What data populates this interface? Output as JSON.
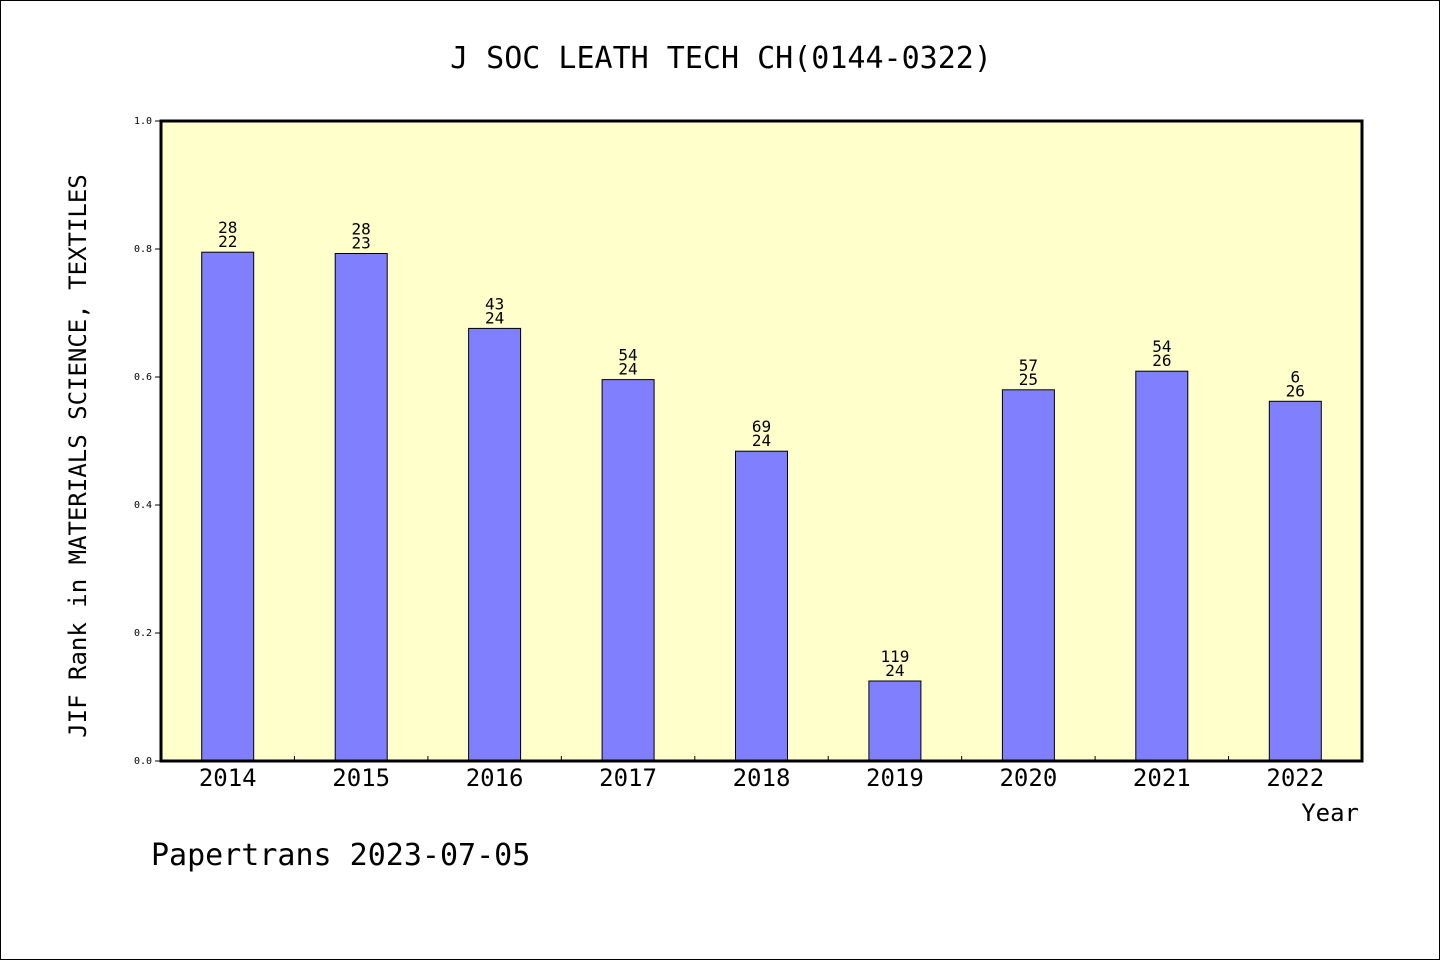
{
  "chart_data": {
    "type": "bar",
    "title": "J SOC LEATH TECH CH(0144-0322)",
    "xlabel": "Year",
    "ylabel": "JIF Rank in MATERIALS SCIENCE, TEXTILES",
    "categories": [
      "2014",
      "2015",
      "2016",
      "2017",
      "2018",
      "2019",
      "2020",
      "2021",
      "2022"
    ],
    "values": [
      0.795,
      0.793,
      0.676,
      0.596,
      0.484,
      0.125,
      0.58,
      0.609,
      0.562
    ],
    "label_top": [
      "28",
      "28",
      "43",
      "54",
      "69",
      "119",
      "57",
      "54",
      "6"
    ],
    "label_bottom": [
      "22",
      "23",
      "24",
      "24",
      "24",
      "24",
      "25",
      "26",
      "26"
    ],
    "ylim": [
      0,
      1.0
    ],
    "yticks": [
      "0.0",
      "0.2",
      "0.4",
      "0.6",
      "0.8",
      "1.0"
    ],
    "grid": false,
    "colors": {
      "plot_background": "#ffffcc",
      "bar_fill": "#8080ff",
      "bar_stroke": "#000000"
    }
  },
  "footer": "Papertrans 2023-07-05"
}
